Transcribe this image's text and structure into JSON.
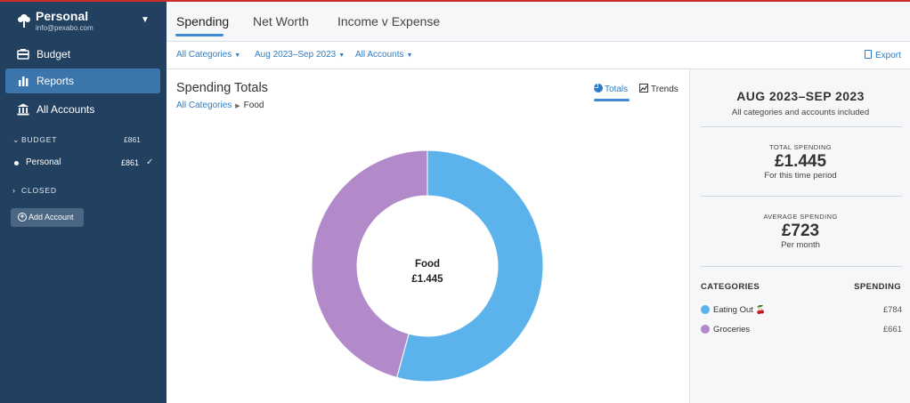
{
  "sidebar": {
    "budget_name": "Personal",
    "email": "info@pexabo.com",
    "nav": [
      {
        "label": "Budget",
        "icon": "budget-icon"
      },
      {
        "label": "Reports",
        "icon": "bar-chart-icon",
        "active": true
      },
      {
        "label": "All Accounts",
        "icon": "bank-icon"
      }
    ],
    "groups": {
      "budget": {
        "label": "BUDGET",
        "amount": "£861"
      },
      "closed": {
        "label": "CLOSED"
      }
    },
    "accounts": [
      {
        "name": "Personal",
        "amount": "£861"
      }
    ],
    "add_account": "Add Account"
  },
  "tabs": [
    {
      "label": "Spending",
      "active": true
    },
    {
      "label": "Net Worth"
    },
    {
      "label": "Income v Expense"
    }
  ],
  "filters": {
    "categories": "All Categories",
    "date_range": "Aug 2023–Sep 2023",
    "accounts": "All Accounts",
    "export": "Export"
  },
  "main": {
    "title": "Spending Totals",
    "breadcrumb_root": "All Categories",
    "breadcrumb_current": "Food",
    "view_totals": "Totals",
    "view_trends": "Trends",
    "center_label": "Food",
    "center_value": "£1.445"
  },
  "chart_data": {
    "type": "pie",
    "donut": true,
    "categories": [
      "Eating Out",
      "Groceries"
    ],
    "values": [
      784,
      661
    ],
    "colors": [
      "#5cb3ec",
      "#b289c9"
    ]
  },
  "summary": {
    "period": "AUG 2023–SEP 2023",
    "period_sub": "All categories and accounts included",
    "total_label": "TOTAL SPENDING",
    "total_value": "£1.445",
    "total_sub": "For this time period",
    "avg_label": "AVERAGE SPENDING",
    "avg_value": "£723",
    "avg_sub": "Per month",
    "col_categories": "CATEGORIES",
    "col_spending": "SPENDING",
    "rows": [
      {
        "name": "Eating Out",
        "emoji": "🍒",
        "amount": "£784",
        "color": "#5cb3ec"
      },
      {
        "name": "Groceries",
        "emoji": "",
        "amount": "£661",
        "color": "#b289c9"
      }
    ]
  }
}
